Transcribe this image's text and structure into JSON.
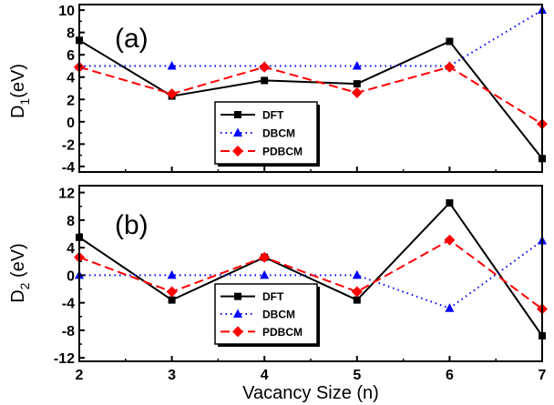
{
  "chart_data": [
    {
      "type": "line",
      "panel_label": "(a)",
      "ylabel_main": "D",
      "ylabel_sub": "1",
      "ylabel_unit": "(eV)",
      "ylim": [
        -4.5,
        10.5
      ],
      "yticks": [
        -4,
        -2,
        0,
        2,
        4,
        6,
        8,
        10
      ],
      "x": [
        2,
        3,
        4,
        5,
        6,
        7
      ],
      "grid": false,
      "legend_placement": "center-right",
      "series": [
        {
          "name": "DFT",
          "values": [
            7.3,
            2.3,
            3.7,
            3.4,
            7.2,
            -3.3
          ],
          "color": "#000000",
          "marker": "square",
          "line": "solid"
        },
        {
          "name": "DBCM",
          "values": [
            5.0,
            5.0,
            5.0,
            5.0,
            5.0,
            10.0
          ],
          "color": "#0000ff",
          "marker": "triangle",
          "line": "dotted"
        },
        {
          "name": "PDBCM",
          "values": [
            4.9,
            2.5,
            4.9,
            2.6,
            4.9,
            -0.2
          ],
          "color": "#ff0000",
          "marker": "diamond",
          "line": "dashed"
        }
      ]
    },
    {
      "type": "line",
      "panel_label": "(b)",
      "ylabel_main": "D",
      "ylabel_sub": "2",
      "ylabel_unit": " (eV)",
      "ylim": [
        -12.5,
        13
      ],
      "yticks": [
        -12,
        -8,
        -4,
        0,
        4,
        8,
        12
      ],
      "x": [
        2,
        3,
        4,
        5,
        6,
        7
      ],
      "xlabel": "Vacancy Size (n)",
      "xticks": [
        "2",
        "3",
        "4",
        "5",
        "6",
        "7"
      ],
      "grid": false,
      "legend_placement": "bottom-center",
      "series": [
        {
          "name": "DFT",
          "values": [
            5.5,
            -3.6,
            2.6,
            -3.6,
            10.5,
            -8.8
          ],
          "color": "#000000",
          "marker": "square",
          "line": "solid"
        },
        {
          "name": "DBCM",
          "values": [
            0,
            0,
            0,
            0,
            -4.8,
            5.0
          ],
          "color": "#0000ff",
          "marker": "triangle",
          "line": "dotted"
        },
        {
          "name": "PDBCM",
          "values": [
            2.6,
            -2.4,
            2.6,
            -2.4,
            5.1,
            -4.9
          ],
          "color": "#ff0000",
          "marker": "diamond",
          "line": "dashed"
        }
      ]
    }
  ]
}
